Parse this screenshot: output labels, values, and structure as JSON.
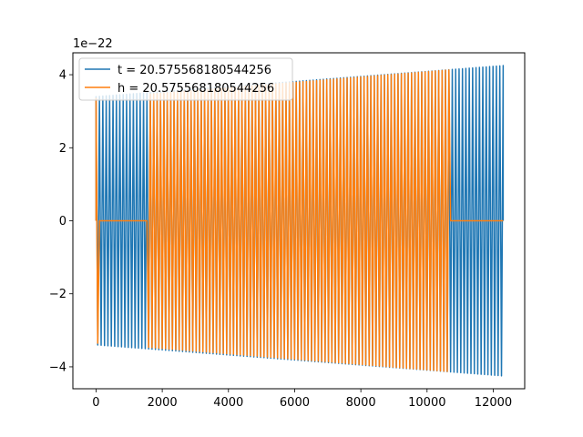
{
  "chart_data": {
    "type": "line",
    "title": "",
    "xlabel": "",
    "ylabel": "",
    "y_offset_label": "1e−22",
    "xlim": [
      -700,
      12950
    ],
    "ylim": [
      -4.6,
      4.6
    ],
    "x_ticks": [
      0,
      2000,
      4000,
      6000,
      8000,
      10000,
      12000
    ],
    "x_tick_labels": [
      "0",
      "2000",
      "4000",
      "6000",
      "8000",
      "10000",
      "12000"
    ],
    "y_ticks": [
      -4,
      -2,
      0,
      2,
      4
    ],
    "y_tick_labels": [
      "−4",
      "−2",
      "0",
      "2",
      "4"
    ],
    "grid": false,
    "legend_position": "top-left",
    "series": [
      {
        "name": "t = 20.575568180544256",
        "color": "#1f77b4",
        "x_start": 0,
        "x_end": 12300,
        "nonzero_range": [
          0,
          12300
        ],
        "amplitude_start": 3.4,
        "amplitude_end": 4.25,
        "cycles": 120
      },
      {
        "name": "h = 20.575568180544256",
        "color": "#ff7f0e",
        "x_start": 0,
        "x_end": 12300,
        "nonzero_range": [
          0,
          10700
        ],
        "flat_range": [
          100,
          1550
        ],
        "amplitude_start": 3.35,
        "amplitude_end": 4.25,
        "cycles": 120
      }
    ]
  }
}
